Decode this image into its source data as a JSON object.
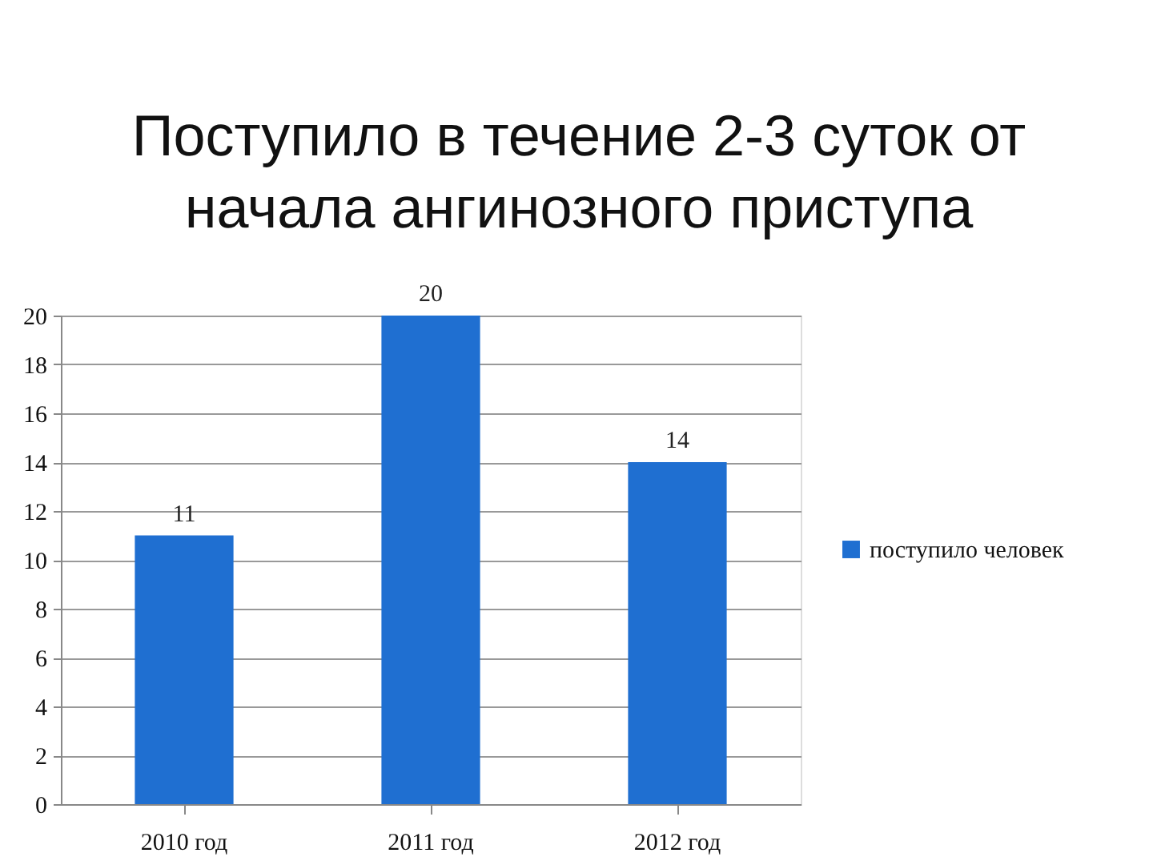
{
  "chart_data": {
    "type": "bar",
    "title": "Поступило в течение 2-3 суток от начала ангинозного приступа",
    "categories": [
      "2010 год",
      "2011 год",
      "2012 год"
    ],
    "series": [
      {
        "name": "поступило человек",
        "color": "#1f6fd1",
        "values": [
          11,
          20,
          14
        ]
      }
    ],
    "ylim": [
      0,
      20
    ],
    "yticks": [
      0,
      2,
      4,
      6,
      8,
      10,
      12,
      14,
      16,
      18,
      20
    ],
    "grid": "y",
    "legend": "right",
    "data_labels": true
  }
}
